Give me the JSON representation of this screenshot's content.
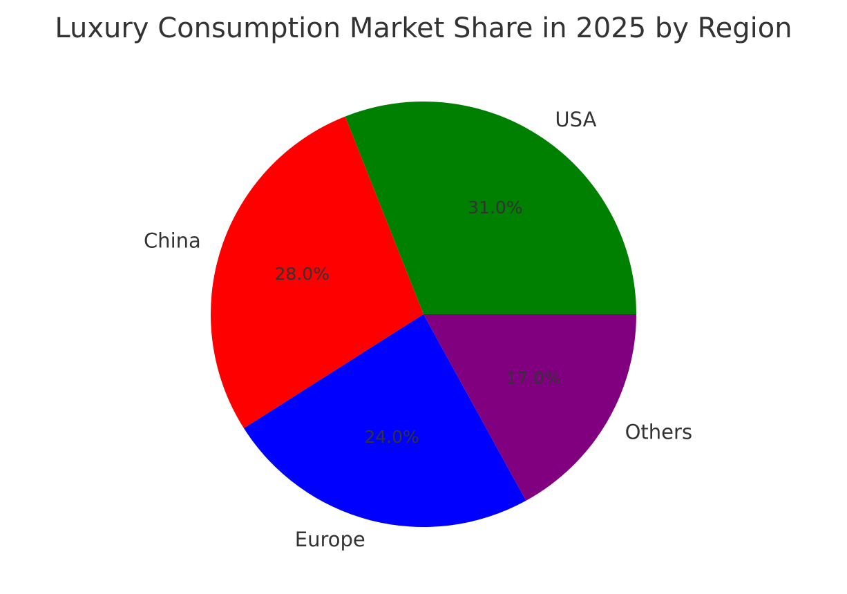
{
  "chart_data": {
    "type": "pie",
    "title": "Luxury Consumption Market Share in 2025 by Region",
    "categories": [
      "USA",
      "China",
      "Europe",
      "Others"
    ],
    "values": [
      31.0,
      28.0,
      24.0,
      17.0
    ],
    "value_labels": [
      "31.0%",
      "28.0%",
      "24.0%",
      "17.0%"
    ],
    "colors": [
      "#008000",
      "#ff0000",
      "#0000ff",
      "#800080"
    ],
    "start_angle_deg": 0,
    "direction": "counterclockwise",
    "legend": "none"
  }
}
